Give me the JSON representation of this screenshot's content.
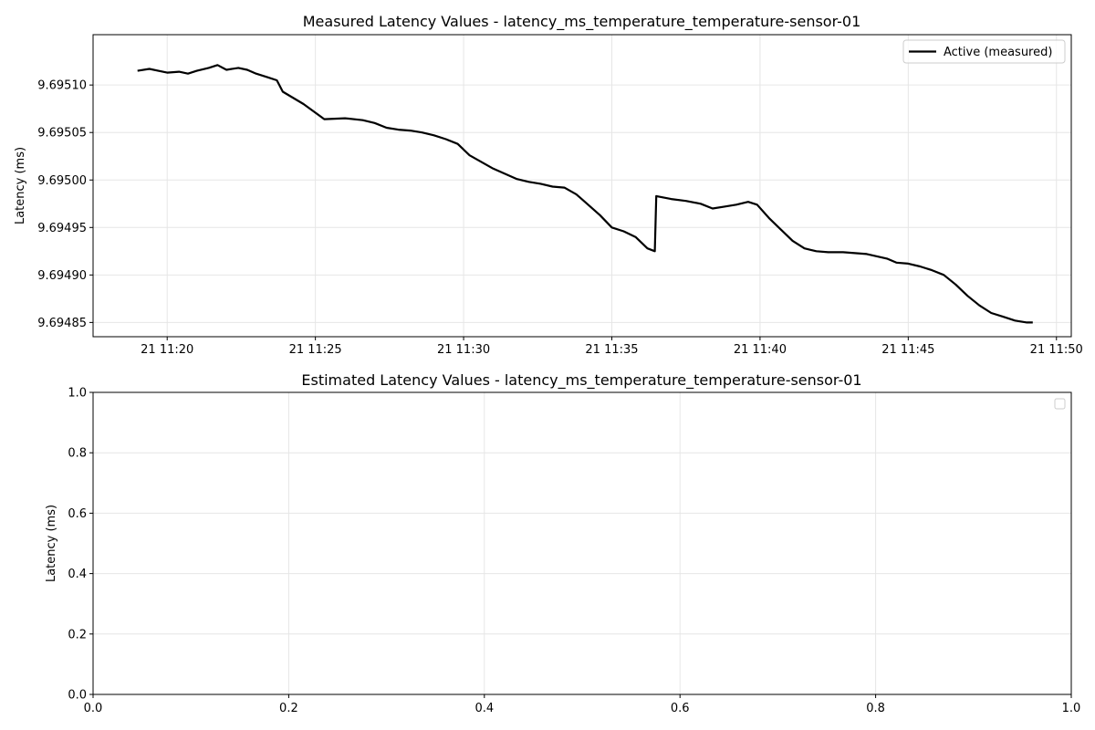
{
  "chart_data": [
    {
      "type": "line",
      "title": "Measured Latency Values - latency_ms_temperature_temperature-sensor-01",
      "xlabel": "",
      "ylabel": "Latency (ms)",
      "grid": true,
      "legend_position": "top-right",
      "x_unit": "time (21 Nov, 11:19–11:49)",
      "xlim": [
        "21 11:17.5",
        "21 11:50.5"
      ],
      "ylim": [
        9.694835,
        9.695153
      ],
      "xticks": [
        "21 11:20",
        "21 11:25",
        "21 11:30",
        "21 11:35",
        "21 11:40",
        "21 11:45",
        "21 11:50"
      ],
      "yticks": [
        "9.69485",
        "9.69490",
        "9.69495",
        "9.69500",
        "9.69505",
        "9.69510"
      ],
      "series": [
        {
          "name": "Active (measured)",
          "color": "#000000",
          "x": [
            "11:19.0",
            "11:19.4",
            "11:19.7",
            "11:20.0",
            "11:20.4",
            "11:20.7",
            "11:21.0",
            "11:21.4",
            "11:21.7",
            "11:22.0",
            "11:22.4",
            "11:22.7",
            "11:23.0",
            "11:23.4",
            "11:23.7",
            "11:23.9",
            "11:24.6",
            "11:25.3",
            "11:26.0",
            "11:26.6",
            "11:27.0",
            "11:27.4",
            "11:27.8",
            "11:28.2",
            "11:28.6",
            "11:29.0",
            "11:29.4",
            "11:29.8",
            "11:30.2",
            "11:31.0",
            "11:31.8",
            "11:32.2",
            "11:32.6",
            "11:33.0",
            "11:33.4",
            "11:33.8",
            "11:34.2",
            "11:34.6",
            "11:35.0",
            "11:35.4",
            "11:35.8",
            "11:36.2",
            "11:36.45",
            "11:36.5",
            "11:37.0",
            "11:37.5",
            "11:38.0",
            "11:38.4",
            "11:38.8",
            "11:39.2",
            "11:39.6",
            "11:39.9",
            "11:40.3",
            "11:40.7",
            "11:41.1",
            "11:41.5",
            "11:41.9",
            "11:42.3",
            "11:42.8",
            "11:43.6",
            "11:44.3",
            "11:44.6",
            "11:45.0",
            "11:45.4",
            "11:45.8",
            "11:46.2",
            "11:46.6",
            "11:47.0",
            "11:47.4",
            "11:47.8",
            "11:48.2",
            "11:48.6",
            "11:49.0",
            "11:49.2"
          ],
          "y": [
            9.695115,
            9.695117,
            9.695115,
            9.695113,
            9.695114,
            9.695112,
            9.695115,
            9.695118,
            9.695121,
            9.695116,
            9.695118,
            9.695116,
            9.695112,
            9.695108,
            9.695105,
            9.695093,
            9.69508,
            9.695064,
            9.695065,
            9.695063,
            9.69506,
            9.695055,
            9.695053,
            9.695052,
            9.69505,
            9.695047,
            9.695043,
            9.695038,
            9.695026,
            9.695012,
            9.695001,
            9.694998,
            9.694996,
            9.694993,
            9.694992,
            9.694985,
            9.694974,
            9.694963,
            9.69495,
            9.694946,
            9.69494,
            9.694928,
            9.694925,
            9.694983,
            9.69498,
            9.694978,
            9.694975,
            9.69497,
            9.694972,
            9.694974,
            9.694977,
            9.694974,
            9.69496,
            9.694948,
            9.694936,
            9.694928,
            9.694925,
            9.694924,
            9.694924,
            9.694922,
            9.694917,
            9.694913,
            9.694912,
            9.694909,
            9.694905,
            9.6949,
            9.69489,
            9.694878,
            9.694868,
            9.69486,
            9.694856,
            9.694852,
            9.69485,
            9.69485
          ]
        }
      ]
    },
    {
      "type": "line",
      "title": "Estimated Latency Values - latency_ms_temperature_temperature-sensor-01",
      "xlabel": "",
      "ylabel": "Latency (ms)",
      "grid": true,
      "legend_position": "top-right",
      "xlim": [
        0,
        1
      ],
      "ylim": [
        0,
        1
      ],
      "xticks": [
        "0.0",
        "0.2",
        "0.4",
        "0.6",
        "0.8",
        "1.0"
      ],
      "yticks": [
        "0.0",
        "0.2",
        "0.4",
        "0.6",
        "0.8",
        "1.0"
      ],
      "series": []
    }
  ]
}
